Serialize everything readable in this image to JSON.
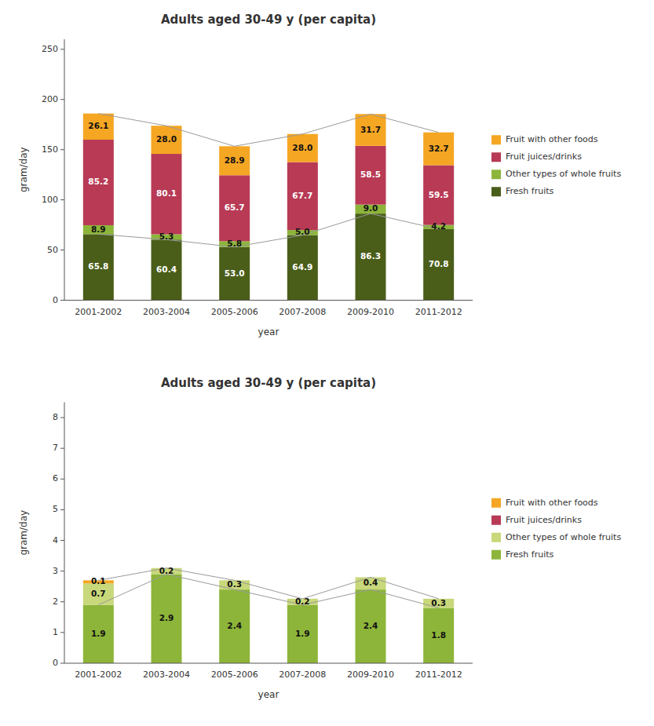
{
  "chart_data": [
    {
      "type": "bar",
      "stacked": true,
      "title": "Adults aged 30-49 y (per capita)",
      "xlabel": "year",
      "ylabel": "gram/day",
      "categories": [
        "2001-2002",
        "2003-2004",
        "2005-2006",
        "2007-2008",
        "2009-2010",
        "2011-2012"
      ],
      "ylim": [
        0,
        260
      ],
      "yticks": [
        0,
        50,
        100,
        150,
        200,
        250
      ],
      "grid": false,
      "legend": "right",
      "data_labels": true,
      "series": [
        {
          "name": "Fresh fruits",
          "color": "#4a5e1a",
          "values": [
            65.8,
            60.4,
            53.0,
            64.9,
            86.3,
            70.8
          ],
          "value_labels": [
            "65.8",
            "60.4",
            "53.0",
            "64.9",
            "86.3",
            "70.8"
          ]
        },
        {
          "name": "Other types of whole fruits",
          "color": "#8db53a",
          "values": [
            8.9,
            5.3,
            5.8,
            5.0,
            9.0,
            4.2
          ],
          "value_labels": [
            "8.9",
            "5.3",
            "5.8",
            "5.0",
            "9.0",
            "4.2"
          ]
        },
        {
          "name": "Fruit juices/drinks",
          "color": "#b83a55",
          "values": [
            85.2,
            80.1,
            65.7,
            67.7,
            58.5,
            59.5
          ]
        },
        {
          "name": "Fruit with other foods",
          "color": "#f5a623",
          "values": [
            26.1,
            28.0,
            28.9,
            28.0,
            31.7,
            32.7
          ],
          "value_labels": [
            "26.1",
            "28.0",
            "28.9",
            "28.0",
            "31.7",
            "32.7"
          ]
        }
      ]
    },
    {
      "type": "bar",
      "stacked": true,
      "title": "Adults aged 30-49 y (per capita)",
      "xlabel": "year",
      "ylabel": "gram/day",
      "categories": [
        "2001-2002",
        "2003-2004",
        "2005-2006",
        "2007-2008",
        "2009-2010",
        "2011-2012"
      ],
      "ylim": [
        0,
        8.5
      ],
      "yticks": [
        0,
        1,
        2,
        3,
        4,
        5,
        6,
        7,
        8
      ],
      "grid": false,
      "legend": "right",
      "data_labels": true,
      "series": [
        {
          "name": "Fresh fruits",
          "color": "#8db53a",
          "values": [
            1.9,
            2.9,
            2.4,
            1.9,
            2.4,
            1.8
          ]
        },
        {
          "name": "Other types of whole fruits",
          "color": "#c8d87a",
          "values": [
            0.7,
            0.2,
            0.3,
            0.2,
            0.4,
            0.3
          ]
        },
        {
          "name": "Fruit juices/drinks",
          "color": "#b83a55",
          "values": [
            0.0,
            0.0,
            0.0,
            0.0,
            0.0,
            0.0
          ]
        },
        {
          "name": "Fruit with other foods",
          "color": "#f5a623",
          "values": [
            0.1,
            0.0,
            0.0,
            0.0,
            0.0,
            0.0
          ]
        }
      ]
    }
  ]
}
